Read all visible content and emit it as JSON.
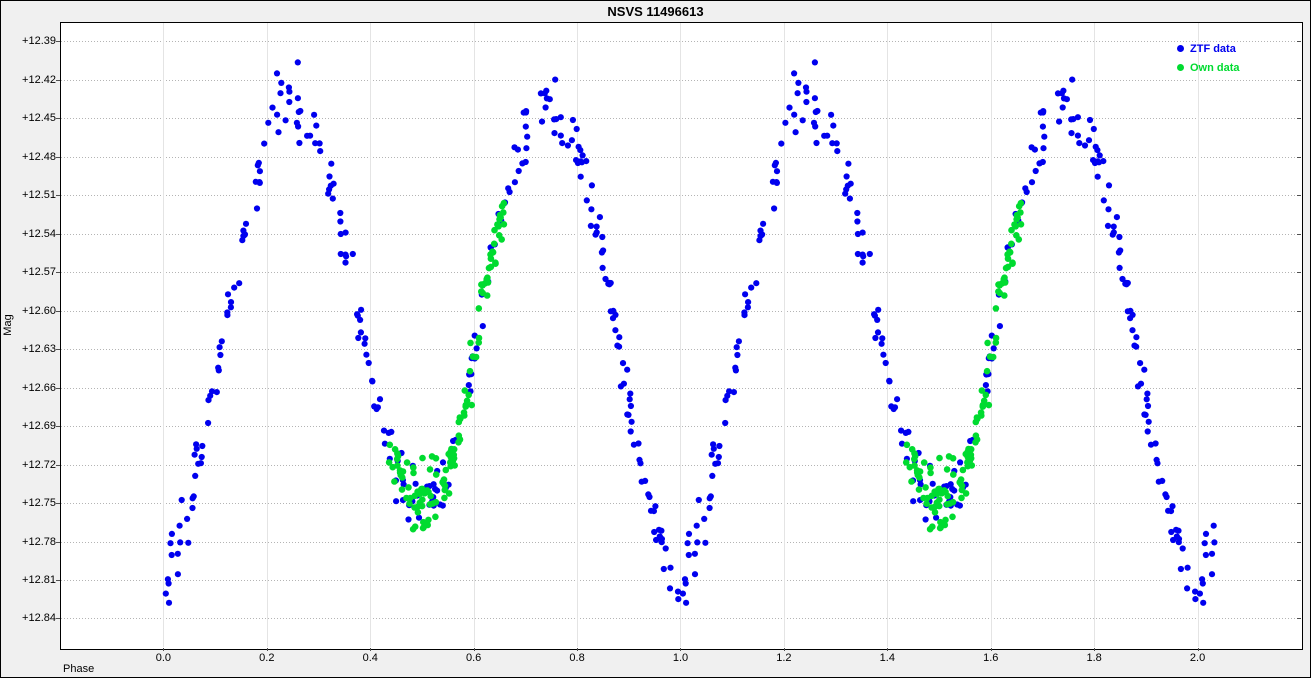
{
  "window": {
    "title": "NSVS 11496613"
  },
  "chart_data": {
    "type": "scatter",
    "title": "NSVS 11496613",
    "xlabel": "Phase",
    "ylabel": "Mag",
    "x_range": [
      -0.2,
      2.2
    ],
    "y_range_mag": [
      12.375,
      12.863
    ],
    "y_axis_inverted": true,
    "x_ticks": [
      {
        "value": 0.0,
        "label": "0.0"
      },
      {
        "value": 0.2,
        "label": "0.2"
      },
      {
        "value": 0.4,
        "label": "0.4"
      },
      {
        "value": 0.6,
        "label": "0.6"
      },
      {
        "value": 0.8,
        "label": "0.8"
      },
      {
        "value": 1.0,
        "label": "1.0"
      },
      {
        "value": 1.2,
        "label": "1.2"
      },
      {
        "value": 1.4,
        "label": "1.4"
      },
      {
        "value": 1.6,
        "label": "1.6"
      },
      {
        "value": 1.8,
        "label": "1.8"
      },
      {
        "value": 2.0,
        "label": "2.0"
      }
    ],
    "y_ticks": [
      {
        "value": 12.39,
        "label": "+12.39"
      },
      {
        "value": 12.42,
        "label": "+12.42"
      },
      {
        "value": 12.45,
        "label": "+12.45"
      },
      {
        "value": 12.48,
        "label": "+12.48"
      },
      {
        "value": 12.51,
        "label": "+12.51"
      },
      {
        "value": 12.54,
        "label": "+12.54"
      },
      {
        "value": 12.57,
        "label": "+12.57"
      },
      {
        "value": 12.6,
        "label": "+12.60"
      },
      {
        "value": 12.63,
        "label": "+12.63"
      },
      {
        "value": 12.66,
        "label": "+12.66"
      },
      {
        "value": 12.69,
        "label": "+12.69"
      },
      {
        "value": 12.72,
        "label": "+12.72"
      },
      {
        "value": 12.75,
        "label": "+12.75"
      },
      {
        "value": 12.78,
        "label": "+12.78"
      },
      {
        "value": 12.81,
        "label": "+12.81"
      },
      {
        "value": 12.84,
        "label": "+12.84"
      }
    ],
    "grid": {
      "horizontal_style": "dotted",
      "vertical_style": "solid",
      "horizontal_color": "#b4b4b4",
      "vertical_color": "#e4e4e4"
    },
    "legend": {
      "position": "top-right"
    },
    "series": [
      {
        "name": "ZTF data",
        "color": "#0000ee",
        "marker": "circle",
        "marker_size_px": 6.2,
        "phase_coverage": [
          0.0,
          1.0
        ],
        "points_per_cycle": 272,
        "noise_mag_sigma": 0.011,
        "cycles_plotted": [
          0,
          1
        ],
        "tail_beyond_phase2_max": 0.035
      },
      {
        "name": "Own data",
        "color": "#00db30",
        "marker": "circle",
        "marker_size_px": 6.6,
        "phase_coverage": [
          0.435,
          0.66
        ],
        "points_per_cycle": 125,
        "noise_mag_sigma": 0.01,
        "cycles_plotted": [
          0,
          1
        ],
        "tail_beyond_phase2_max": 0
      }
    ],
    "noise_rules": [
      {
        "when_mag_below": 12.47,
        "factor": 1.7
      },
      {
        "when_mag_above": 12.735,
        "factor": 1.25
      }
    ],
    "random_seed": 1149661,
    "mean_curve": [
      [
        0.0,
        12.815
      ],
      [
        0.01,
        12.81
      ],
      [
        0.025,
        12.79
      ],
      [
        0.04,
        12.762
      ],
      [
        0.06,
        12.725
      ],
      [
        0.08,
        12.69
      ],
      [
        0.1,
        12.655
      ],
      [
        0.12,
        12.615
      ],
      [
        0.14,
        12.575
      ],
      [
        0.16,
        12.54
      ],
      [
        0.18,
        12.505
      ],
      [
        0.2,
        12.475
      ],
      [
        0.22,
        12.455
      ],
      [
        0.24,
        12.443
      ],
      [
        0.26,
        12.442
      ],
      [
        0.28,
        12.452
      ],
      [
        0.3,
        12.472
      ],
      [
        0.32,
        12.5
      ],
      [
        0.34,
        12.532
      ],
      [
        0.36,
        12.568
      ],
      [
        0.38,
        12.607
      ],
      [
        0.4,
        12.648
      ],
      [
        0.42,
        12.685
      ],
      [
        0.44,
        12.712
      ],
      [
        0.46,
        12.73
      ],
      [
        0.48,
        12.741
      ],
      [
        0.5,
        12.746
      ],
      [
        0.52,
        12.744
      ],
      [
        0.54,
        12.736
      ],
      [
        0.56,
        12.716
      ],
      [
        0.58,
        12.682
      ],
      [
        0.6,
        12.638
      ],
      [
        0.62,
        12.592
      ],
      [
        0.64,
        12.548
      ],
      [
        0.66,
        12.512
      ],
      [
        0.68,
        12.485
      ],
      [
        0.7,
        12.465
      ],
      [
        0.72,
        12.452
      ],
      [
        0.74,
        12.446
      ],
      [
        0.76,
        12.447
      ],
      [
        0.78,
        12.456
      ],
      [
        0.8,
        12.474
      ],
      [
        0.82,
        12.502
      ],
      [
        0.84,
        12.539
      ],
      [
        0.86,
        12.582
      ],
      [
        0.88,
        12.628
      ],
      [
        0.9,
        12.674
      ],
      [
        0.92,
        12.717
      ],
      [
        0.94,
        12.753
      ],
      [
        0.96,
        12.781
      ],
      [
        0.98,
        12.801
      ],
      [
        1.0,
        12.815
      ]
    ],
    "features": {
      "primary_minimum": {
        "phase": 0.0,
        "mag": 12.815
      },
      "maximum_1": {
        "phase": 0.25,
        "mag": 12.442
      },
      "secondary_minimum": {
        "phase": 0.5,
        "mag": 12.746
      },
      "maximum_2": {
        "phase": 0.75,
        "mag": 12.446
      },
      "brightest_points_mag": 12.418,
      "faintest_points_mag": 12.83
    }
  }
}
